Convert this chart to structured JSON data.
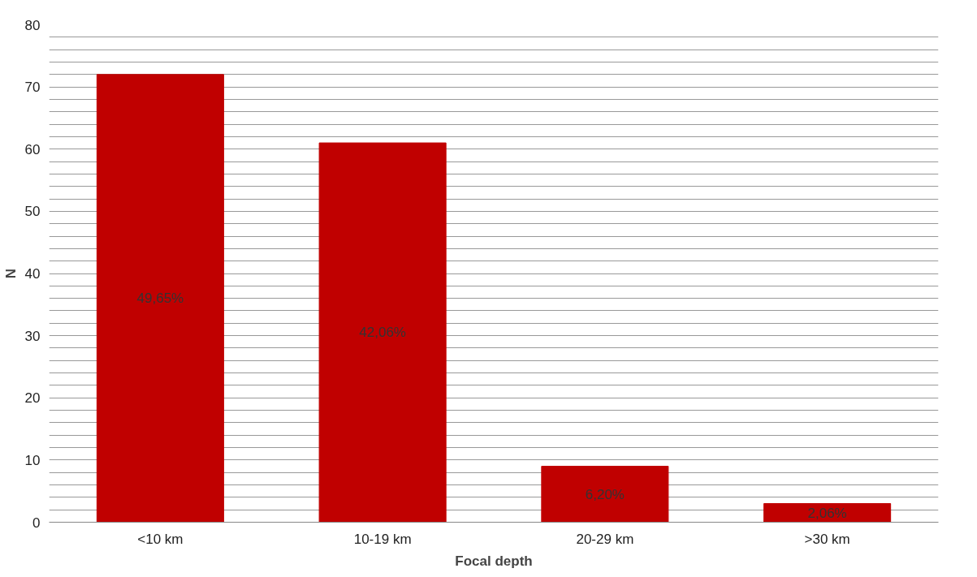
{
  "chart_data": {
    "type": "bar",
    "xlabel": "Focal depth",
    "ylabel": "N",
    "categories": [
      "<10 km",
      "10-19 km",
      "20-29 km",
      ">30 km"
    ],
    "values": [
      72,
      61,
      9,
      3
    ],
    "annotations": [
      "49,65%",
      "42,06%",
      "6,20%",
      "2,06%"
    ],
    "color": "#c00000",
    "ylim": [
      0,
      80
    ],
    "yticks": [
      0,
      {
        "value": 2,
        "label": null
      },
      {
        "value": 4,
        "label": null
      },
      {
        "value": 6,
        "label": null
      },
      {
        "value": 8,
        "label": null
      },
      10,
      {
        "value": 12,
        "label": null
      },
      {
        "value": 14,
        "label": null
      },
      {
        "value": 16,
        "label": null
      },
      {
        "value": 18,
        "label": null
      },
      20,
      {
        "value": 22,
        "label": null
      },
      {
        "value": 24,
        "label": null
      },
      {
        "value": 26,
        "label": null
      },
      {
        "value": 28,
        "label": null
      },
      30,
      {
        "value": 32,
        "label": null
      },
      {
        "value": 34,
        "label": null
      },
      {
        "value": 36,
        "label": null
      },
      {
        "value": 38,
        "label": null
      },
      40,
      {
        "value": 42,
        "label": null
      },
      {
        "value": 44,
        "label": null
      },
      {
        "value": 46,
        "label": null
      },
      {
        "value": 48,
        "label": null
      },
      50,
      {
        "value": 52,
        "label": null
      },
      {
        "value": 54,
        "label": null
      },
      {
        "value": 56,
        "label": null
      },
      {
        "value": 58,
        "label": null
      },
      60,
      {
        "value": 62,
        "label": null
      },
      {
        "value": 64,
        "label": null
      },
      {
        "value": 66,
        "label": null
      },
      {
        "value": 68,
        "label": null
      },
      70,
      {
        "value": 72,
        "label": null
      },
      {
        "value": 74,
        "label": null
      },
      {
        "value": 76,
        "label": null
      },
      {
        "value": 78,
        "label": null
      },
      80
    ],
    "grid": "y"
  }
}
